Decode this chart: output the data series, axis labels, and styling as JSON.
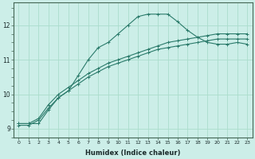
{
  "xlabel": "Humidex (Indice chaleur)",
  "ylabel": "",
  "bg_color": "#cceee8",
  "grid_color": "#aaddcc",
  "line_color": "#2a7a6a",
  "xlim": [
    -0.5,
    23.5
  ],
  "ylim": [
    8.75,
    12.65
  ],
  "xticks": [
    0,
    1,
    2,
    3,
    4,
    5,
    6,
    7,
    8,
    9,
    10,
    11,
    12,
    13,
    14,
    15,
    16,
    17,
    18,
    19,
    20,
    21,
    22,
    23
  ],
  "yticks": [
    9,
    10,
    11,
    12
  ],
  "series": [
    {
      "x": [
        0,
        1,
        2,
        3,
        4,
        5,
        6,
        7,
        8,
        9,
        10,
        11,
        12,
        13,
        14,
        15,
        16,
        17,
        18,
        19,
        20,
        21,
        22,
        23
      ],
      "y": [
        9.15,
        9.15,
        9.15,
        9.55,
        9.9,
        10.1,
        10.55,
        11.0,
        11.35,
        11.5,
        11.75,
        12.0,
        12.25,
        12.32,
        12.32,
        12.32,
        12.1,
        11.85,
        11.65,
        11.5,
        11.45,
        11.45,
        11.5,
        11.45
      ],
      "marker": "+"
    },
    {
      "x": [
        0,
        1,
        2,
        3,
        4,
        5,
        6,
        7,
        8,
        9,
        10,
        11,
        12,
        13,
        14,
        15,
        16,
        17,
        18,
        19,
        20,
        21,
        22,
        23
      ],
      "y": [
        9.15,
        9.15,
        9.3,
        9.7,
        10.0,
        10.2,
        10.4,
        10.6,
        10.75,
        10.9,
        11.0,
        11.1,
        11.2,
        11.3,
        11.4,
        11.5,
        11.55,
        11.6,
        11.65,
        11.7,
        11.75,
        11.75,
        11.75,
        11.75
      ],
      "marker": "+"
    },
    {
      "x": [
        0,
        1,
        2,
        3,
        4,
        5,
        6,
        7,
        8,
        9,
        10,
        11,
        12,
        13,
        14,
        15,
        16,
        17,
        18,
        19,
        20,
        21,
        22,
        23
      ],
      "y": [
        9.1,
        9.1,
        9.25,
        9.6,
        9.9,
        10.1,
        10.3,
        10.5,
        10.65,
        10.8,
        10.9,
        11.0,
        11.1,
        11.2,
        11.3,
        11.35,
        11.4,
        11.45,
        11.5,
        11.55,
        11.6,
        11.6,
        11.6,
        11.6
      ],
      "marker": "+"
    }
  ]
}
